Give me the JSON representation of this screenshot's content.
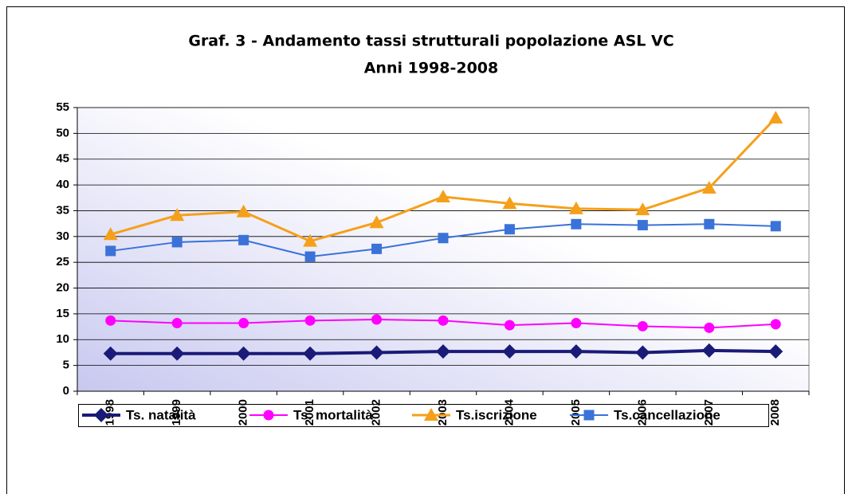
{
  "chart_data": {
    "type": "line",
    "title": [
      "Graf. 3  - Andamento tassi strutturali popolazione ASL VC",
      "Anni 1998-2008"
    ],
    "categories": [
      "1998",
      "1999",
      "2000",
      "2001",
      "2002",
      "2003",
      "2004",
      "2005",
      "2006",
      "2007",
      "2008"
    ],
    "series": [
      {
        "name": "Ts. natalità",
        "color": "#1a1a78",
        "marker": "diamond",
        "values": [
          7.3,
          7.3,
          7.3,
          7.3,
          7.5,
          7.7,
          7.7,
          7.7,
          7.5,
          7.9,
          7.7
        ]
      },
      {
        "name": "Ts. mortalità",
        "color": "#ff00ff",
        "marker": "circle",
        "values": [
          13.7,
          13.2,
          13.2,
          13.7,
          13.9,
          13.7,
          12.8,
          13.2,
          12.6,
          12.3,
          13.0
        ]
      },
      {
        "name": "Ts.iscrizione",
        "color": "#f5a01a",
        "marker": "triangle",
        "values": [
          30.4,
          34.1,
          34.8,
          29.1,
          32.7,
          37.7,
          36.4,
          35.4,
          35.2,
          39.4,
          53.0
        ]
      },
      {
        "name": "Ts.cancellazione",
        "color": "#3a72d8",
        "marker": "square",
        "values": [
          27.2,
          28.9,
          29.3,
          26.1,
          27.6,
          29.7,
          31.4,
          32.4,
          32.2,
          32.4,
          32.0
        ]
      }
    ],
    "ylim": [
      0,
      55
    ],
    "yticks": [
      0,
      5,
      10,
      15,
      20,
      25,
      30,
      35,
      40,
      45,
      50,
      55
    ],
    "grid": true,
    "legend": "bottom"
  }
}
